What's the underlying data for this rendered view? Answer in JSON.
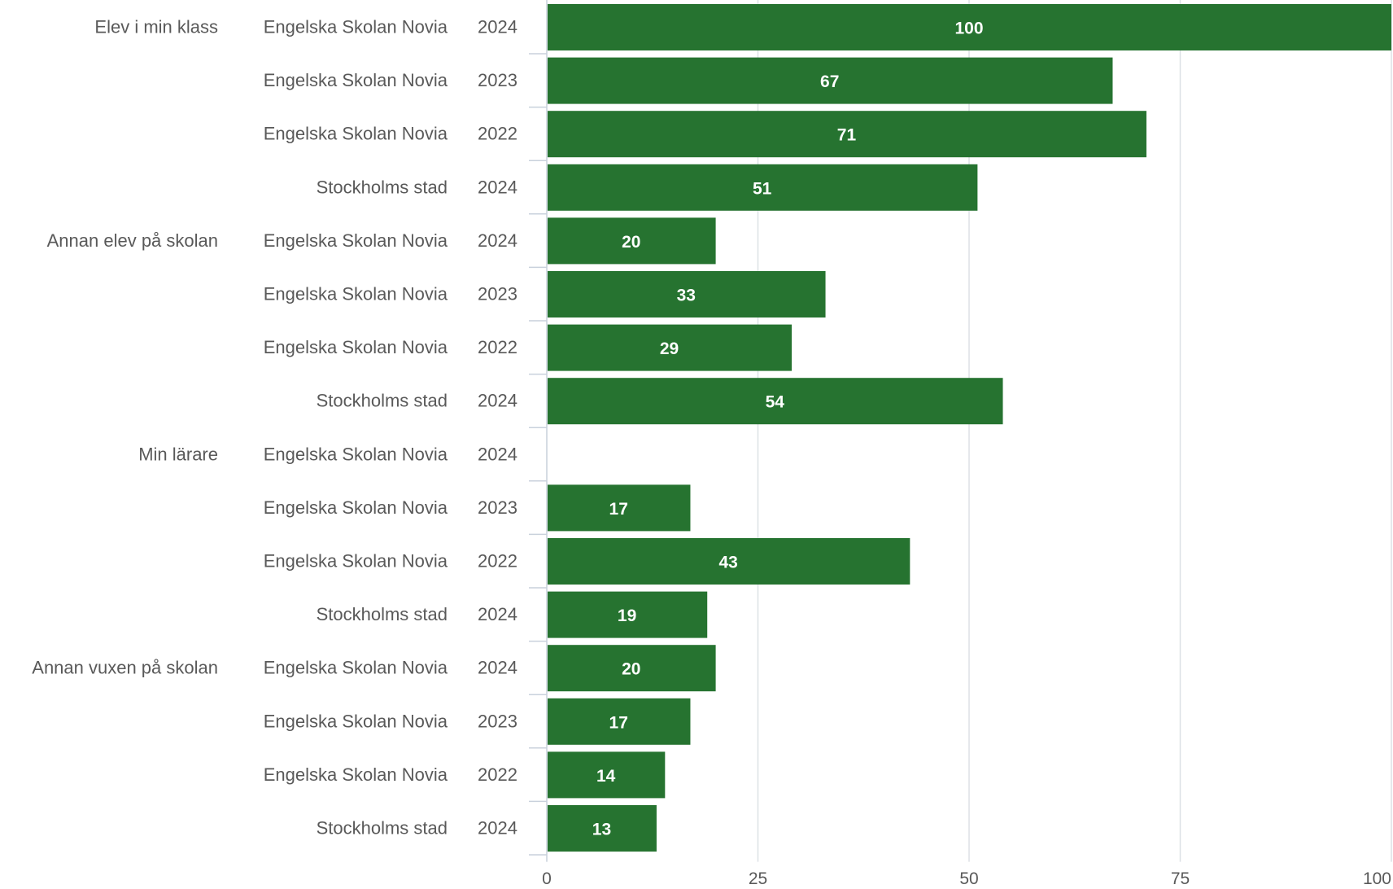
{
  "chart_data": {
    "type": "bar",
    "orientation": "horizontal",
    "title": "",
    "xlabel": "",
    "ylabel": "",
    "xlim": [
      0,
      100
    ],
    "x_ticks": [
      0,
      25,
      50,
      75,
      100
    ],
    "grid": true,
    "bar_color": "#267330",
    "grid_color": "#dde1e6",
    "rows": [
      {
        "group": "Elev i min klass",
        "school": "Engelska Skolan Novia",
        "year": "2024",
        "value": 100
      },
      {
        "group": "",
        "school": "Engelska Skolan Novia",
        "year": "2023",
        "value": 67
      },
      {
        "group": "",
        "school": "Engelska Skolan Novia",
        "year": "2022",
        "value": 71
      },
      {
        "group": "",
        "school": "Stockholms stad",
        "year": "2024",
        "value": 51
      },
      {
        "group": "Annan elev på skolan",
        "school": "Engelska Skolan Novia",
        "year": "2024",
        "value": 20
      },
      {
        "group": "",
        "school": "Engelska Skolan Novia",
        "year": "2023",
        "value": 33
      },
      {
        "group": "",
        "school": "Engelska Skolan Novia",
        "year": "2022",
        "value": 29
      },
      {
        "group": "",
        "school": "Stockholms stad",
        "year": "2024",
        "value": 54
      },
      {
        "group": "Min lärare",
        "school": "Engelska Skolan Novia",
        "year": "2024",
        "value": null
      },
      {
        "group": "",
        "school": "Engelska Skolan Novia",
        "year": "2023",
        "value": 17
      },
      {
        "group": "",
        "school": "Engelska Skolan Novia",
        "year": "2022",
        "value": 43
      },
      {
        "group": "",
        "school": "Stockholms stad",
        "year": "2024",
        "value": 19
      },
      {
        "group": "Annan vuxen på skolan",
        "school": "Engelska Skolan Novia",
        "year": "2024",
        "value": 20
      },
      {
        "group": "",
        "school": "Engelska Skolan Novia",
        "year": "2023",
        "value": 17
      },
      {
        "group": "",
        "school": "Engelska Skolan Novia",
        "year": "2022",
        "value": 14
      },
      {
        "group": "",
        "school": "Stockholms stad",
        "year": "2024",
        "value": 13
      }
    ]
  }
}
